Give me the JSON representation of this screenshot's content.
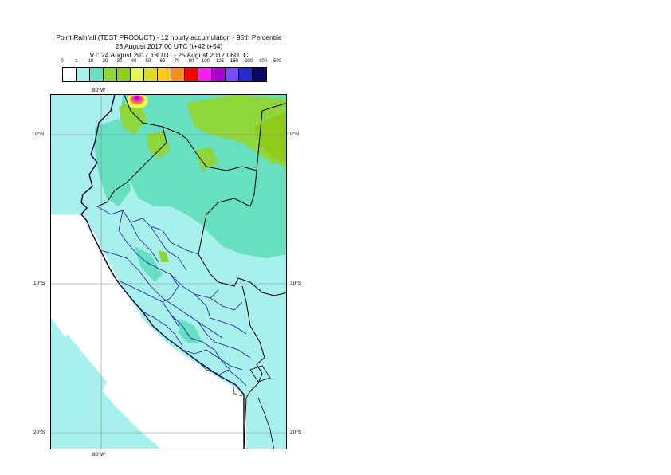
{
  "title": {
    "line1": "Point Rainfall (TEST PRODUCT) - 12 hourly accumulation - 95th Percentile",
    "line2": "23 August 2017 00 UTC (t+42,t+54)",
    "line3": "VT: 24 August 2017 18UTC - 25 August 2017 06UTC"
  },
  "legend": {
    "labels": [
      "0",
      "1",
      "10",
      "20",
      "30",
      "40",
      "50",
      "60",
      "70",
      "80",
      "100",
      "125",
      "150",
      "200",
      "300",
      "500"
    ],
    "colors": [
      "#ffffff",
      "#a8f0ec",
      "#66e0c0",
      "#8fd63a",
      "#8fcc1a",
      "#e6f75a",
      "#dcdc28",
      "#ffc81e",
      "#ff8c1a",
      "#ff0000",
      "#ff1aff",
      "#aa00cc",
      "#7a4cff",
      "#2a2acc",
      "#0a0a66"
    ]
  },
  "axes": {
    "lon_top": "80°W",
    "lon_bottom": "80°W",
    "lat_left": [
      "0°N",
      "10°S",
      "20°S"
    ],
    "lat_right": [
      "0°N",
      "10°S",
      "20°S"
    ]
  }
}
